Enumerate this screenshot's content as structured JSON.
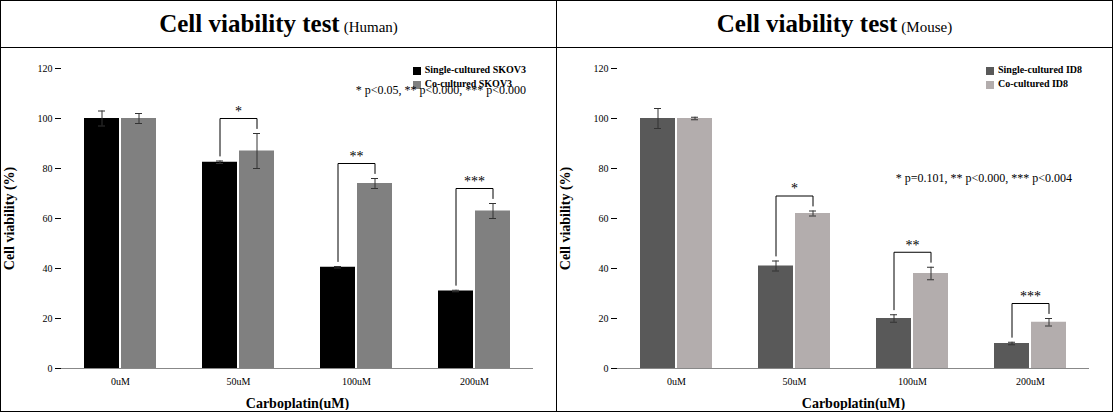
{
  "chart_data": [
    {
      "type": "bar",
      "title": "Cell viability test",
      "subtitle": "(Human)",
      "x_label": "Carboplatin(uM)",
      "y_label": "Cell viability (%)",
      "categories": [
        "0uM",
        "50uM",
        "100uM",
        "200uM"
      ],
      "series": [
        {
          "name": "Single-cultured SKOV3",
          "color": "#000000",
          "values": [
            100,
            82.5,
            40.5,
            31
          ],
          "errors": [
            3,
            0.5,
            0.3,
            0.3
          ]
        },
        {
          "name": "Co-cultured SKOV3",
          "color": "#808080",
          "values": [
            100,
            87,
            74,
            63
          ],
          "errors": [
            2,
            7,
            2,
            3
          ]
        }
      ],
      "significance": [
        null,
        "*",
        "**",
        "***"
      ],
      "annotation": "* p<0.05, ** p<0.000, *** p<0.000",
      "ylim": [
        0,
        120
      ],
      "yticks": [
        0,
        20,
        40,
        60,
        80,
        100,
        120
      ],
      "grid": false,
      "legend": "upper right"
    },
    {
      "type": "bar",
      "title": "Cell viability test",
      "subtitle": "(Mouse)",
      "x_label": "Carboplatin(uM)",
      "y_label": "Cell viability (%)",
      "categories": [
        "0uM",
        "50uM",
        "100uM",
        "200uM"
      ],
      "series": [
        {
          "name": "Single-cultured ID8",
          "color": "#595959",
          "values": [
            100,
            41,
            20,
            10
          ],
          "errors": [
            4,
            2,
            1.5,
            0.5
          ]
        },
        {
          "name": "Co-cultured ID8",
          "color": "#b3adad",
          "values": [
            100,
            62,
            38,
            18.5
          ],
          "errors": [
            0.5,
            1,
            2.5,
            1.5
          ]
        }
      ],
      "significance": [
        null,
        "*",
        "**",
        "***"
      ],
      "annotation": "* p=0.101, ** p<0.000, *** p<0.004",
      "ylim": [
        0,
        120
      ],
      "yticks": [
        0,
        20,
        40,
        60,
        80,
        100,
        120
      ],
      "grid": false,
      "legend": "upper right"
    }
  ]
}
